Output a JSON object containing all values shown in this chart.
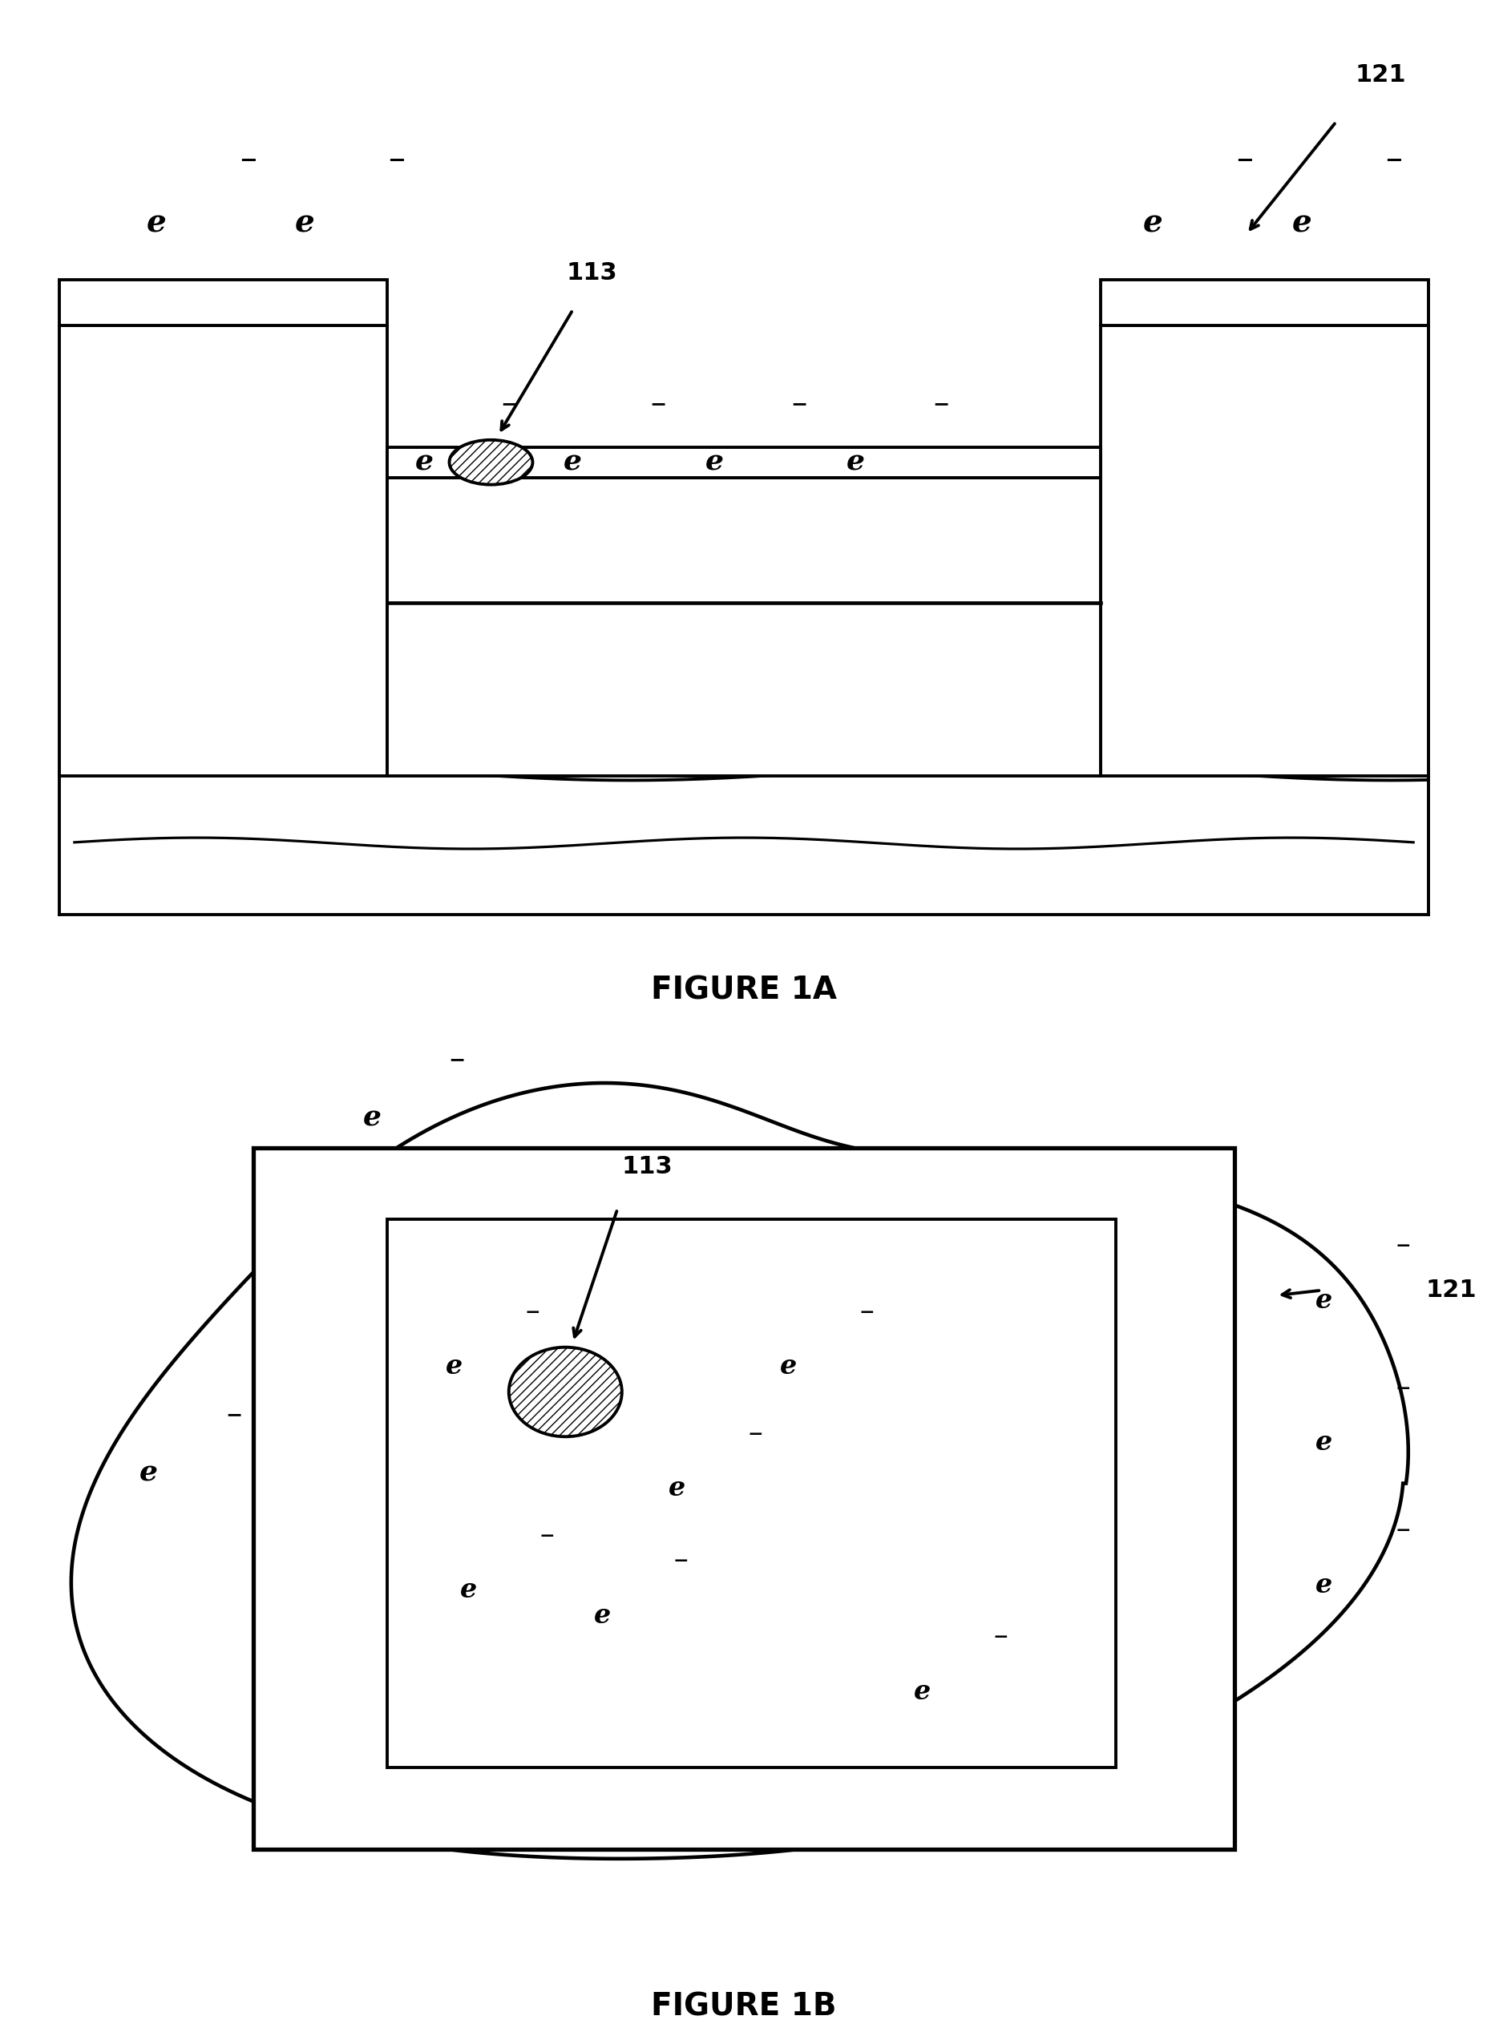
{
  "fig_width": 18.56,
  "fig_height": 25.35,
  "bg_color": "#ffffff",
  "line_color": "#000000",
  "fig1a_title": "FIGURE 1A",
  "fig1b_title": "FIGURE 1B",
  "label_113": "113",
  "label_121": "121"
}
